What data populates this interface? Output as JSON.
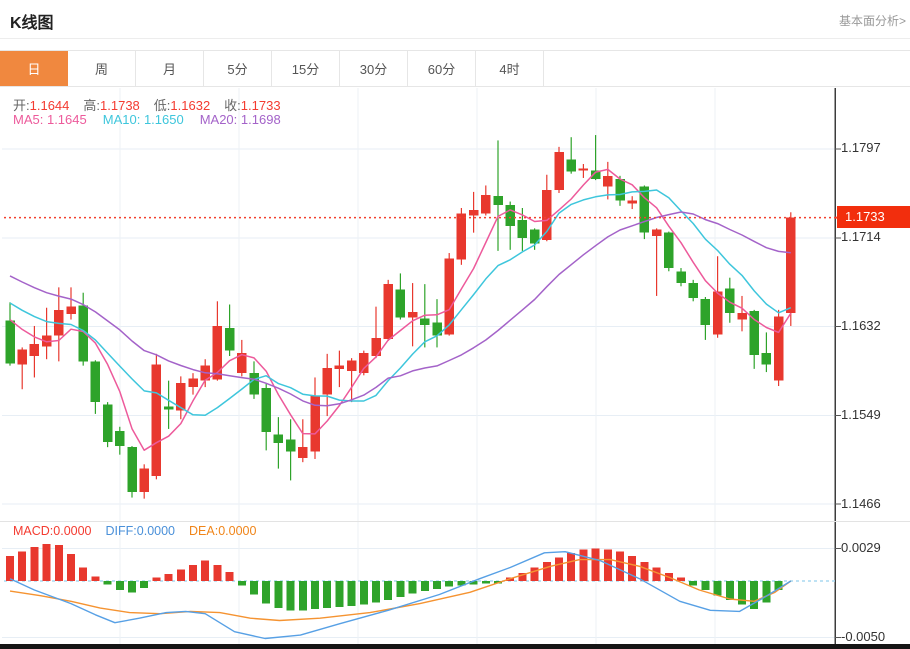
{
  "header": {
    "title": "K线图",
    "link": "基本面分析>"
  },
  "tabs": {
    "items": [
      {
        "label": "日",
        "active": true
      },
      {
        "label": "周",
        "active": false
      },
      {
        "label": "月",
        "active": false
      },
      {
        "label": "5分",
        "active": false
      },
      {
        "label": "15分",
        "active": false
      },
      {
        "label": "30分",
        "active": false
      },
      {
        "label": "60分",
        "active": false
      },
      {
        "label": "4时",
        "active": false
      }
    ]
  },
  "ohlc": {
    "open_label": "开:",
    "open": "1.1644",
    "high_label": "高:",
    "high": "1.1738",
    "low_label": "低:",
    "low": "1.1632",
    "close_label": "收:",
    "close": "1.1733"
  },
  "ma_info": {
    "ma5_label": "MA5:",
    "ma5": "1.1645",
    "ma10_label": "MA10:",
    "ma10": "1.1650",
    "ma20_label": "MA20:",
    "ma20": "1.1698"
  },
  "macd_info": {
    "macd_label": "MACD:",
    "macd": "0.0000",
    "diff_label": "DIFF:",
    "diff": "0.0000",
    "dea_label": "DEA:",
    "dea": "0.0000"
  },
  "price_axis": {
    "ticks": [
      "1.1797",
      "1.1714",
      "1.1632",
      "1.1549",
      "1.1466"
    ],
    "current": "1.1733"
  },
  "macd_axis": {
    "ticks": [
      "0.0029",
      "-0.0050"
    ]
  },
  "colors": {
    "up": "#e8382e",
    "down": "#2ea32a",
    "ma5": "#ed5a9b",
    "ma10": "#3ec6dc",
    "ma20": "#a463c9",
    "diff": "#57a0e5",
    "dea": "#f59331",
    "current_line": "#f4402e",
    "current_box": "#f22e0d",
    "grid_h": "#e7eef5",
    "grid_v": "#edf1f5",
    "zero_dash": "#a8d8f0",
    "axis": "#3c3c3c",
    "tab_active": "#f0883f",
    "red_text": "#f43b30",
    "diff_text": "#4a90d9",
    "dea_text": "#f08519"
  },
  "chart_data": {
    "type": "candlestick+macd",
    "title": "K线图",
    "legend": [
      "MA5",
      "MA10",
      "MA20",
      "MACD",
      "DIFF",
      "DEA"
    ],
    "price_axis_ticks": [
      1.1797,
      1.1714,
      1.1632,
      1.1549,
      1.1466
    ],
    "current_price": 1.1733,
    "macd_axis_ticks": [
      0.0029,
      -0.005
    ],
    "up_means": "red",
    "down_means": "green",
    "grid": true,
    "axis_side": "right",
    "candles_ohlc": [
      [
        1.1637,
        1.1654,
        1.1595,
        1.1597
      ],
      [
        1.1596,
        1.1612,
        1.1573,
        1.161
      ],
      [
        1.1604,
        1.1632,
        1.1584,
        1.1615
      ],
      [
        1.1613,
        1.1649,
        1.1601,
        1.1623
      ],
      [
        1.1623,
        1.1668,
        1.1599,
        1.1647
      ],
      [
        1.1643,
        1.1668,
        1.1638,
        1.165
      ],
      [
        1.1651,
        1.1663,
        1.1595,
        1.1599
      ],
      [
        1.1599,
        1.16,
        1.155,
        1.1561
      ],
      [
        1.1559,
        1.1561,
        1.1519,
        1.1524
      ],
      [
        1.1534,
        1.1538,
        1.1512,
        1.152
      ],
      [
        1.1519,
        1.152,
        1.1472,
        1.1477
      ],
      [
        1.1477,
        1.1503,
        1.1471,
        1.1499
      ],
      [
        1.1492,
        1.1606,
        1.1489,
        1.1596
      ],
      [
        1.1557,
        1.1581,
        1.1536,
        1.1554
      ],
      [
        1.1553,
        1.1585,
        1.1545,
        1.1579
      ],
      [
        1.1575,
        1.1588,
        1.1568,
        1.1583
      ],
      [
        1.1581,
        1.1601,
        1.1575,
        1.1595
      ],
      [
        1.1582,
        1.1655,
        1.1581,
        1.1632
      ],
      [
        1.163,
        1.1652,
        1.1604,
        1.1609
      ],
      [
        1.1588,
        1.1619,
        1.1585,
        1.1607
      ],
      [
        1.1588,
        1.1599,
        1.1564,
        1.1568
      ],
      [
        1.1574,
        1.1578,
        1.1516,
        1.1533
      ],
      [
        1.1531,
        1.1547,
        1.1499,
        1.1523
      ],
      [
        1.1526,
        1.1545,
        1.1488,
        1.1515
      ],
      [
        1.1509,
        1.1545,
        1.1505,
        1.1519
      ],
      [
        1.1515,
        1.1584,
        1.1508,
        1.1567
      ],
      [
        1.1568,
        1.1606,
        1.1548,
        1.1593
      ],
      [
        1.1592,
        1.1609,
        1.1575,
        1.1595
      ],
      [
        1.159,
        1.1602,
        1.1561,
        1.16
      ],
      [
        1.1588,
        1.1609,
        1.1586,
        1.1607
      ],
      [
        1.1604,
        1.165,
        1.1602,
        1.1621
      ],
      [
        1.162,
        1.1675,
        1.1618,
        1.1671
      ],
      [
        1.1666,
        1.1681,
        1.1638,
        1.164
      ],
      [
        1.164,
        1.1672,
        1.1613,
        1.1645
      ],
      [
        1.1639,
        1.1671,
        1.1612,
        1.1633
      ],
      [
        1.1635,
        1.1657,
        1.1612,
        1.1623
      ],
      [
        1.1624,
        1.17,
        1.1623,
        1.1695
      ],
      [
        1.1694,
        1.1742,
        1.1689,
        1.1737
      ],
      [
        1.1735,
        1.1757,
        1.1719,
        1.174
      ],
      [
        1.1737,
        1.1763,
        1.1735,
        1.1754
      ],
      [
        1.1753,
        1.1805,
        1.1702,
        1.1745
      ],
      [
        1.1745,
        1.1748,
        1.1703,
        1.1725
      ],
      [
        1.1731,
        1.1742,
        1.1702,
        1.1714
      ],
      [
        1.1722,
        1.1723,
        1.1703,
        1.1709
      ],
      [
        1.1712,
        1.1773,
        1.1711,
        1.1759
      ],
      [
        1.1759,
        1.1799,
        1.1756,
        1.1794
      ],
      [
        1.1787,
        1.1808,
        1.1774,
        1.1776
      ],
      [
        1.1777,
        1.1783,
        1.177,
        1.1779
      ],
      [
        1.1777,
        1.181,
        1.1768,
        1.1769
      ],
      [
        1.1762,
        1.1785,
        1.175,
        1.1772
      ],
      [
        1.1769,
        1.1772,
        1.1744,
        1.1749
      ],
      [
        1.1746,
        1.1753,
        1.1741,
        1.1749
      ],
      [
        1.1762,
        1.1763,
        1.1713,
        1.1719
      ],
      [
        1.1716,
        1.1723,
        1.166,
        1.1722
      ],
      [
        1.1719,
        1.172,
        1.1683,
        1.1686
      ],
      [
        1.1683,
        1.1686,
        1.1669,
        1.1672
      ],
      [
        1.1672,
        1.1675,
        1.1655,
        1.1658
      ],
      [
        1.1657,
        1.1659,
        1.1619,
        1.1633
      ],
      [
        1.1624,
        1.1697,
        1.1621,
        1.1664
      ],
      [
        1.1667,
        1.1677,
        1.1635,
        1.1644
      ],
      [
        1.1638,
        1.166,
        1.1627,
        1.1644
      ],
      [
        1.1646,
        1.1647,
        1.1592,
        1.1605
      ],
      [
        1.1607,
        1.1626,
        1.1589,
        1.1596
      ],
      [
        1.1581,
        1.1647,
        1.1576,
        1.1641
      ],
      [
        1.1644,
        1.1738,
        1.1632,
        1.1733
      ]
    ],
    "ma_periods": [
      5,
      10,
      20
    ],
    "ma_seed_history": [
      1.1725,
      1.172,
      1.1716,
      1.1711,
      1.1706,
      1.1702,
      1.1697,
      1.1692,
      1.1688,
      1.1683,
      1.1678,
      1.1674,
      1.1669,
      1.1664,
      1.166,
      1.1655,
      1.165,
      1.1646,
      1.1641
    ],
    "ma_current": {
      "ma5": 1.1645,
      "ma10": 1.165,
      "ma20": 1.1698
    },
    "macd_histogram": [
      0.0022,
      0.0026,
      0.003,
      0.0033,
      0.0032,
      0.0024,
      0.0012,
      0.0004,
      -0.0003,
      -0.0008,
      -0.001,
      -0.0006,
      0.0003,
      0.0006,
      0.001,
      0.0014,
      0.0018,
      0.0014,
      0.0008,
      -0.0004,
      -0.0012,
      -0.002,
      -0.0024,
      -0.0026,
      -0.0026,
      -0.0025,
      -0.0024,
      -0.0023,
      -0.0022,
      -0.0021,
      -0.0019,
      -0.0017,
      -0.0014,
      -0.0011,
      -0.0009,
      -0.0007,
      -0.0005,
      -0.0004,
      -0.0003,
      -0.0002,
      -0.0002,
      0.0003,
      0.0007,
      0.0012,
      0.0017,
      0.0021,
      0.0025,
      0.0028,
      0.0029,
      0.0028,
      0.0026,
      0.0022,
      0.0017,
      0.0012,
      0.0007,
      0.0003,
      -0.0004,
      -0.0008,
      -0.0013,
      -0.0017,
      -0.0021,
      -0.0025,
      -0.0019,
      -0.0008,
      0.0
    ],
    "diff_line": [
      [
        0,
        0.0002
      ],
      [
        2,
        -0.0008
      ],
      [
        5,
        -0.002
      ],
      [
        7,
        -0.003
      ],
      [
        8.6,
        -0.0037
      ],
      [
        10.6,
        -0.0033
      ],
      [
        12.8,
        -0.0028
      ],
      [
        14.4,
        -0.0027
      ],
      [
        16,
        -0.0029
      ],
      [
        18.4,
        -0.0045
      ],
      [
        20.9,
        -0.0051
      ],
      [
        23.8,
        -0.0048
      ],
      [
        27,
        -0.0038
      ],
      [
        31,
        -0.0026
      ],
      [
        35.2,
        -0.0012
      ],
      [
        38.5,
        0.0002
      ],
      [
        41,
        0.0012
      ],
      [
        43.8,
        0.0025
      ],
      [
        45.5,
        0.0026
      ],
      [
        48.4,
        0.0018
      ],
      [
        51.6,
        0.0002
      ],
      [
        54.9,
        -0.0018
      ],
      [
        57.4,
        -0.0026
      ],
      [
        59.8,
        -0.0027
      ],
      [
        61.9,
        -0.0014
      ],
      [
        64,
        0.0
      ]
    ],
    "dea_line": [
      [
        0,
        -0.0009
      ],
      [
        2.5,
        -0.0013
      ],
      [
        5,
        -0.0018
      ],
      [
        7.4,
        -0.0024
      ],
      [
        9.8,
        -0.0028
      ],
      [
        12.3,
        -0.0029
      ],
      [
        14.8,
        -0.0027
      ],
      [
        17.2,
        -0.0028
      ],
      [
        19.7,
        -0.0033
      ],
      [
        22.1,
        -0.0035
      ],
      [
        25.4,
        -0.0033
      ],
      [
        29.5,
        -0.0028
      ],
      [
        33.6,
        -0.002
      ],
      [
        37.7,
        -0.001
      ],
      [
        41,
        0.0002
      ],
      [
        44.3,
        0.0013
      ],
      [
        46.7,
        0.0019
      ],
      [
        49.2,
        0.0019
      ],
      [
        51.6,
        0.0013
      ],
      [
        54.1,
        0.0003
      ],
      [
        56.5,
        -0.0008
      ],
      [
        59,
        -0.0016
      ],
      [
        61,
        -0.0018
      ],
      [
        62.7,
        -0.001
      ],
      [
        64,
        0.0
      ]
    ]
  }
}
